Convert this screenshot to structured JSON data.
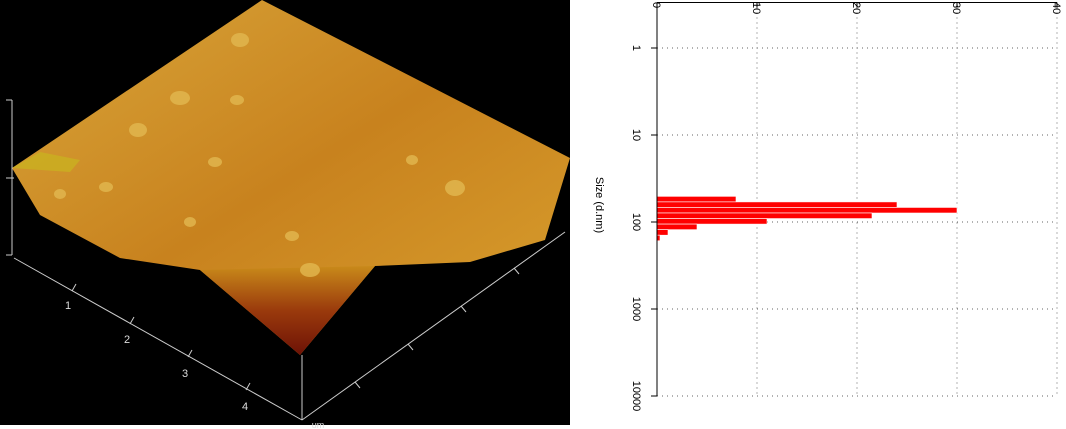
{
  "image": {
    "axis_labels": [
      "1",
      "2",
      "3",
      "4"
    ],
    "unit": "um"
  },
  "chart_data": {
    "type": "histogram",
    "orientation": "horizontal",
    "ylabel": "Size (d.nm)",
    "bins": [
      50.75,
      58.77,
      68.06,
      78.82,
      91.28,
      105.7,
      122.4,
      141.8,
      164.2
    ],
    "values": [
      7.9,
      24,
      30,
      21.5,
      11,
      4,
      1.1,
      0.3
    ],
    "color": "#ff0000",
    "xlim": [
      0,
      40
    ],
    "xticks": [
      0,
      10,
      20,
      30,
      40
    ],
    "ylim": [
      0.3,
      10000
    ],
    "yticks": [
      1,
      10,
      100,
      1000,
      10000
    ],
    "yscale": "log",
    "grid": true
  }
}
